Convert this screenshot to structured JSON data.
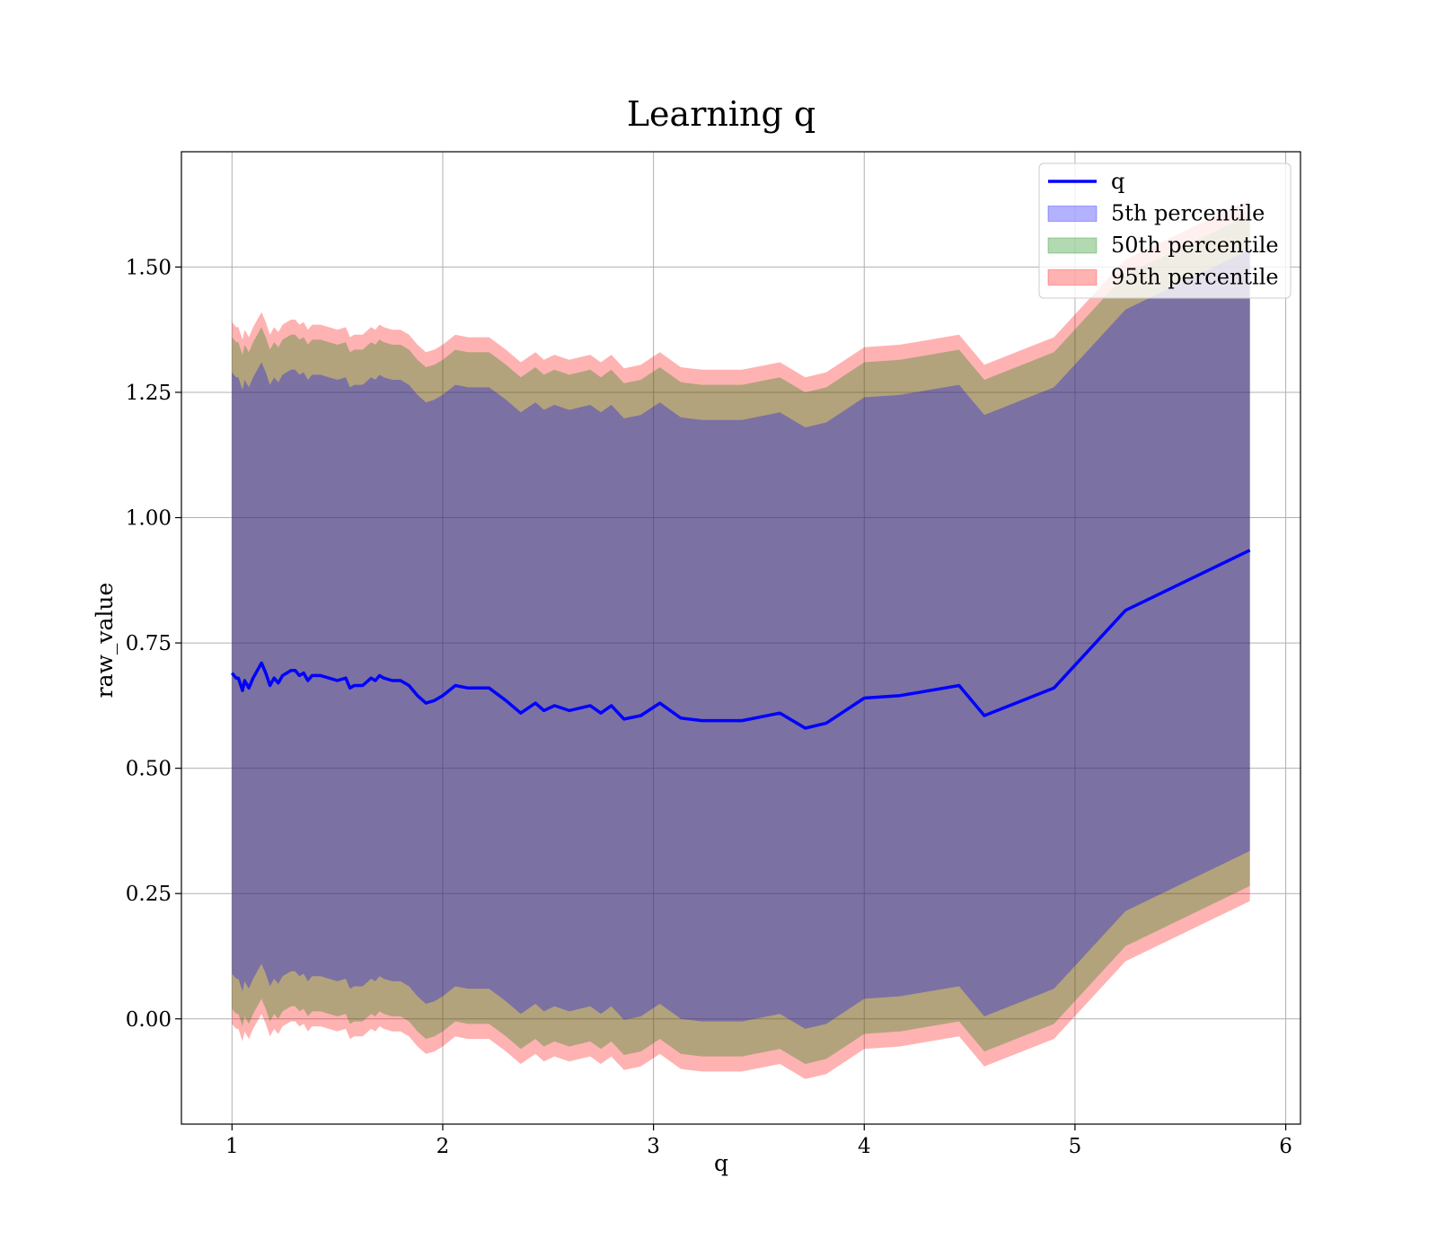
{
  "chart_data": {
    "type": "line",
    "title": "Learning q",
    "xlabel": "q",
    "ylabel": "raw_value",
    "xlim": [
      0.76,
      6.07
    ],
    "ylim": [
      -0.21,
      1.73
    ],
    "x_ticks": [
      1,
      2,
      3,
      4,
      5,
      6
    ],
    "x_tick_labels": [
      "1",
      "2",
      "3",
      "4",
      "5",
      "6"
    ],
    "y_ticks": [
      0.0,
      0.25,
      0.5,
      0.75,
      1.0,
      1.25,
      1.5
    ],
    "y_tick_labels": [
      "0.00",
      "0.25",
      "0.50",
      "0.75",
      "1.00",
      "1.25",
      "1.50"
    ],
    "grid": true,
    "legend_position": "top-right",
    "x": [
      1.0,
      1.02,
      1.03,
      1.05,
      1.06,
      1.08,
      1.1,
      1.12,
      1.14,
      1.16,
      1.18,
      1.2,
      1.22,
      1.24,
      1.26,
      1.28,
      1.3,
      1.32,
      1.34,
      1.36,
      1.38,
      1.42,
      1.46,
      1.5,
      1.54,
      1.56,
      1.58,
      1.6,
      1.62,
      1.66,
      1.68,
      1.7,
      1.72,
      1.76,
      1.8,
      1.84,
      1.88,
      1.92,
      1.96,
      2.0,
      2.06,
      2.12,
      2.22,
      2.3,
      2.37,
      2.44,
      2.48,
      2.53,
      2.6,
      2.7,
      2.75,
      2.8,
      2.86,
      2.94,
      3.03,
      3.13,
      3.23,
      3.42,
      3.6,
      3.72,
      3.82,
      4.0,
      4.17,
      4.45,
      4.57,
      4.9,
      5.24,
      5.83
    ],
    "series": [
      {
        "name": "q",
        "values": [
          0.69,
          0.68,
          0.68,
          0.655,
          0.675,
          0.66,
          0.68,
          0.695,
          0.71,
          0.69,
          0.665,
          0.68,
          0.67,
          0.685,
          0.69,
          0.695,
          0.695,
          0.685,
          0.69,
          0.675,
          0.685,
          0.685,
          0.68,
          0.675,
          0.68,
          0.66,
          0.665,
          0.665,
          0.665,
          0.68,
          0.675,
          0.685,
          0.68,
          0.675,
          0.675,
          0.665,
          0.645,
          0.63,
          0.635,
          0.645,
          0.665,
          0.66,
          0.66,
          0.635,
          0.61,
          0.63,
          0.615,
          0.625,
          0.615,
          0.625,
          0.61,
          0.625,
          0.598,
          0.605,
          0.63,
          0.6,
          0.595,
          0.595,
          0.61,
          0.58,
          0.59,
          0.64,
          0.645,
          0.665,
          0.605,
          0.66,
          0.815,
          0.935
        ]
      },
      {
        "name": "5th percentile",
        "lower": [
          0.09,
          0.08,
          0.08,
          0.055,
          0.075,
          0.06,
          0.08,
          0.095,
          0.11,
          0.09,
          0.065,
          0.08,
          0.07,
          0.085,
          0.09,
          0.095,
          0.095,
          0.085,
          0.09,
          0.075,
          0.085,
          0.085,
          0.08,
          0.075,
          0.08,
          0.06,
          0.065,
          0.065,
          0.065,
          0.08,
          0.075,
          0.085,
          0.08,
          0.075,
          0.075,
          0.065,
          0.045,
          0.03,
          0.035,
          0.045,
          0.065,
          0.06,
          0.06,
          0.035,
          0.01,
          0.03,
          0.015,
          0.025,
          0.015,
          0.025,
          0.01,
          0.025,
          -0.002,
          0.005,
          0.03,
          0.0,
          -0.005,
          -0.005,
          0.01,
          -0.02,
          -0.01,
          0.04,
          0.045,
          0.065,
          0.005,
          0.06,
          0.215,
          0.335
        ],
        "upper": [
          1.29,
          1.28,
          1.28,
          1.255,
          1.275,
          1.26,
          1.28,
          1.295,
          1.31,
          1.29,
          1.265,
          1.28,
          1.27,
          1.285,
          1.29,
          1.295,
          1.295,
          1.285,
          1.29,
          1.275,
          1.285,
          1.285,
          1.28,
          1.275,
          1.28,
          1.26,
          1.265,
          1.265,
          1.265,
          1.28,
          1.275,
          1.285,
          1.28,
          1.275,
          1.275,
          1.265,
          1.245,
          1.23,
          1.235,
          1.245,
          1.265,
          1.26,
          1.26,
          1.235,
          1.21,
          1.23,
          1.215,
          1.225,
          1.215,
          1.225,
          1.21,
          1.225,
          1.198,
          1.205,
          1.23,
          1.2,
          1.195,
          1.195,
          1.21,
          1.18,
          1.19,
          1.24,
          1.245,
          1.265,
          1.205,
          1.26,
          1.415,
          1.535
        ]
      },
      {
        "name": "50th percentile",
        "lower": [
          0.02,
          0.01,
          0.01,
          -0.015,
          0.005,
          -0.01,
          0.01,
          0.025,
          0.04,
          0.02,
          -0.005,
          0.01,
          0.0,
          0.015,
          0.02,
          0.025,
          0.025,
          0.015,
          0.02,
          0.005,
          0.015,
          0.015,
          0.01,
          0.005,
          0.01,
          -0.01,
          -0.005,
          -0.005,
          -0.005,
          0.01,
          0.005,
          0.015,
          0.01,
          0.005,
          0.005,
          -0.005,
          -0.025,
          -0.04,
          -0.035,
          -0.025,
          -0.005,
          -0.01,
          -0.01,
          -0.035,
          -0.06,
          -0.04,
          -0.055,
          -0.045,
          -0.055,
          -0.045,
          -0.06,
          -0.045,
          -0.072,
          -0.065,
          -0.04,
          -0.07,
          -0.075,
          -0.075,
          -0.06,
          -0.09,
          -0.08,
          -0.03,
          -0.025,
          -0.005,
          -0.065,
          -0.01,
          0.145,
          0.265
        ],
        "upper": [
          1.36,
          1.35,
          1.35,
          1.325,
          1.345,
          1.33,
          1.35,
          1.365,
          1.38,
          1.36,
          1.335,
          1.35,
          1.34,
          1.355,
          1.36,
          1.365,
          1.365,
          1.355,
          1.36,
          1.345,
          1.355,
          1.355,
          1.35,
          1.345,
          1.35,
          1.33,
          1.335,
          1.335,
          1.335,
          1.35,
          1.345,
          1.355,
          1.35,
          1.345,
          1.345,
          1.335,
          1.315,
          1.3,
          1.305,
          1.315,
          1.335,
          1.33,
          1.33,
          1.305,
          1.28,
          1.3,
          1.285,
          1.295,
          1.285,
          1.295,
          1.28,
          1.295,
          1.268,
          1.275,
          1.3,
          1.27,
          1.265,
          1.265,
          1.28,
          1.25,
          1.26,
          1.31,
          1.315,
          1.335,
          1.275,
          1.33,
          1.485,
          1.605
        ]
      },
      {
        "name": "95th percentile",
        "lower": [
          -0.01,
          -0.02,
          -0.02,
          -0.045,
          -0.025,
          -0.04,
          -0.02,
          -0.005,
          0.01,
          -0.01,
          -0.035,
          -0.02,
          -0.03,
          -0.015,
          -0.01,
          -0.005,
          -0.005,
          -0.015,
          -0.01,
          -0.025,
          -0.015,
          -0.015,
          -0.02,
          -0.025,
          -0.02,
          -0.04,
          -0.035,
          -0.035,
          -0.035,
          -0.02,
          -0.025,
          -0.015,
          -0.02,
          -0.025,
          -0.025,
          -0.035,
          -0.055,
          -0.07,
          -0.065,
          -0.055,
          -0.035,
          -0.04,
          -0.04,
          -0.065,
          -0.09,
          -0.07,
          -0.085,
          -0.075,
          -0.085,
          -0.075,
          -0.09,
          -0.075,
          -0.102,
          -0.095,
          -0.07,
          -0.1,
          -0.105,
          -0.105,
          -0.09,
          -0.12,
          -0.11,
          -0.06,
          -0.055,
          -0.035,
          -0.095,
          -0.04,
          0.115,
          0.235
        ],
        "upper": [
          1.39,
          1.38,
          1.38,
          1.355,
          1.375,
          1.36,
          1.38,
          1.395,
          1.41,
          1.39,
          1.365,
          1.38,
          1.37,
          1.385,
          1.39,
          1.395,
          1.395,
          1.385,
          1.39,
          1.375,
          1.385,
          1.385,
          1.38,
          1.375,
          1.38,
          1.36,
          1.365,
          1.365,
          1.365,
          1.38,
          1.375,
          1.385,
          1.38,
          1.375,
          1.375,
          1.365,
          1.345,
          1.33,
          1.335,
          1.345,
          1.365,
          1.36,
          1.36,
          1.335,
          1.31,
          1.33,
          1.315,
          1.325,
          1.315,
          1.325,
          1.31,
          1.325,
          1.298,
          1.305,
          1.33,
          1.3,
          1.295,
          1.295,
          1.31,
          1.28,
          1.29,
          1.34,
          1.345,
          1.365,
          1.305,
          1.36,
          1.515,
          1.635
        ]
      }
    ],
    "colors": {
      "line": "#0000ff",
      "band_5th": "#0000ff",
      "band_50th": "#008000",
      "band_95th": "#ff0000"
    }
  }
}
